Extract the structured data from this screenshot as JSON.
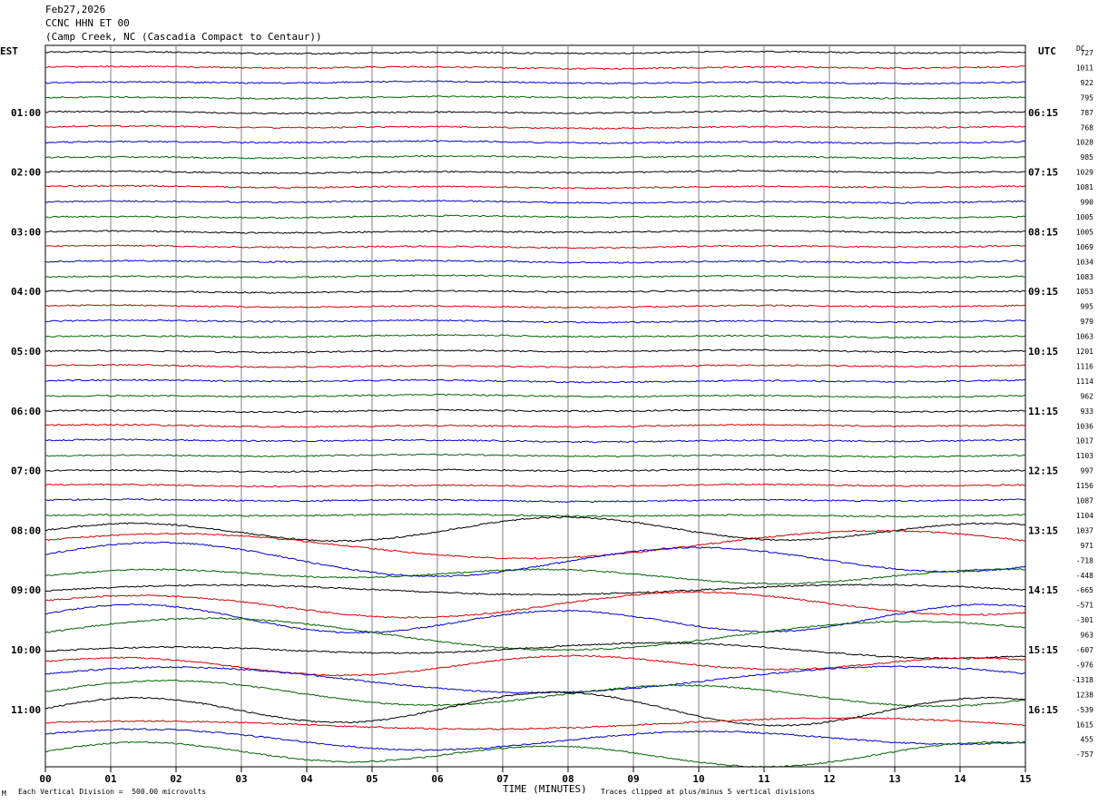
{
  "header": {
    "line1": "Feb27,2026",
    "line2": "CCNC HHN ET 00",
    "line3": "(Camp Creek, NC (Cascadia Compact to Centaur))"
  },
  "corner": {
    "left_tz": "EST",
    "right_tz": "UTC",
    "dc_label": "DC"
  },
  "footer": {
    "vertical_division": "Each Vertical Division =  500.00 microvolts",
    "clipped": "Traces clipped at plus/minus 5 vertical divisions",
    "mark": "M"
  },
  "colors": {
    "trace_cycle": [
      "#000000",
      "#d40000",
      "#0000c8",
      "#006400"
    ],
    "grid": "#808080"
  },
  "chart_data": {
    "type": "line",
    "title": "CCNC HHN ET 00",
    "xlabel": "TIME (MINUTES)",
    "x_ticks": [
      "00",
      "01",
      "02",
      "03",
      "04",
      "05",
      "06",
      "07",
      "08",
      "09",
      "10",
      "11",
      "12",
      "13",
      "14",
      "15"
    ],
    "xlim": [
      0,
      15
    ],
    "left_time_labels": [
      "01:00",
      "02:00",
      "03:00",
      "04:00",
      "05:00",
      "06:00",
      "07:00",
      "08:00",
      "09:00",
      "10:00",
      "11:00"
    ],
    "right_time_labels": [
      "06:15",
      "07:15",
      "08:15",
      "09:15",
      "10:15",
      "11:15",
      "12:15",
      "13:15",
      "14:15",
      "15:15",
      "16:15"
    ],
    "dc_offsets": [
      "727",
      "1011",
      "922",
      "795",
      "787",
      "768",
      "1028",
      "985",
      "1029",
      "1081",
      "990",
      "1005",
      "1005",
      "1069",
      "1034",
      "1083",
      "1053",
      "995",
      "979",
      "1063",
      "1201",
      "1116",
      "1114",
      "962",
      "933",
      "1036",
      "1017",
      "1103",
      "997",
      "1156",
      "1087",
      "1104",
      "1037",
      "971",
      "-718",
      "-448",
      "-665",
      "-571",
      "-301",
      "963",
      "-607",
      "-976",
      "-1318",
      "1238",
      "-539",
      "1615",
      "455",
      "-757"
    ],
    "trace_count": 48,
    "trace_minutes": 15
  }
}
